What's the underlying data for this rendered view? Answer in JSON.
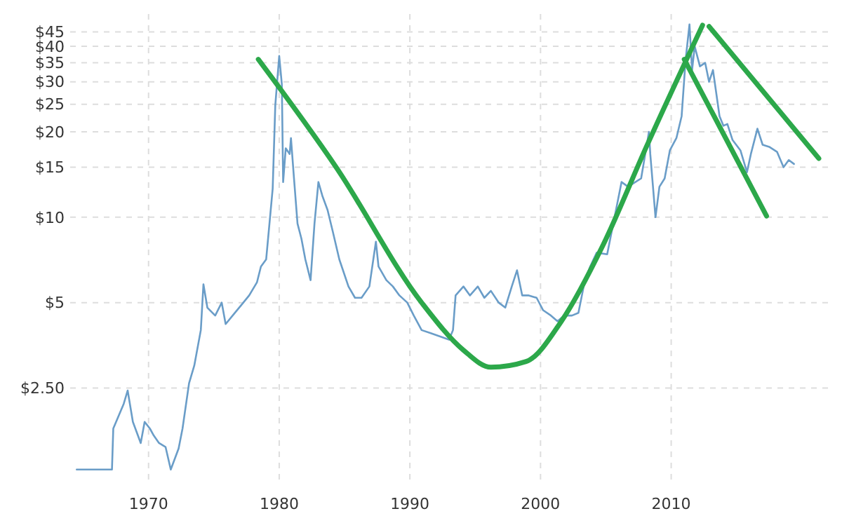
{
  "chart_data": {
    "type": "line",
    "log": "y",
    "grid": true,
    "line_style": "solid",
    "xlim": [
      1964,
      2022
    ],
    "ylim": [
      1.15,
      52
    ],
    "xticks": [
      1970,
      1980,
      1990,
      2000,
      2010
    ],
    "yticks": [
      {
        "value": 2.5,
        "label": "$2.50"
      },
      {
        "value": 5,
        "label": "$5"
      },
      {
        "value": 10,
        "label": "$10"
      },
      {
        "value": 15,
        "label": "$15"
      },
      {
        "value": 20,
        "label": "$20"
      },
      {
        "value": 25,
        "label": "$25"
      },
      {
        "value": 30,
        "label": "$30"
      },
      {
        "value": 35,
        "label": "$35"
      },
      {
        "value": 40,
        "label": "$40"
      },
      {
        "value": 45,
        "label": "$45"
      }
    ],
    "series": [
      {
        "color": "#6a9dc8",
        "x": [
          1964.5,
          1967.2,
          1967.3,
          1968.1,
          1968.4,
          1968.8,
          1969.4,
          1969.7,
          1970.1,
          1970.4,
          1970.8,
          1971.3,
          1971.7,
          1972.3,
          1972.6,
          1973.1,
          1973.5,
          1974.0,
          1974.2,
          1974.5,
          1975.1,
          1975.6,
          1975.9,
          1976.6,
          1977.1,
          1977.7,
          1978.3,
          1978.6,
          1979.0,
          1979.5,
          1979.7,
          1980.0,
          1980.2,
          1980.3,
          1980.5,
          1980.8,
          1980.9,
          1981.1,
          1981.4,
          1981.7,
          1982.0,
          1982.4,
          1982.7,
          1983.0,
          1983.3,
          1983.7,
          1984.1,
          1984.6,
          1985.3,
          1985.8,
          1986.3,
          1986.9,
          1987.4,
          1987.6,
          1988.2,
          1988.7,
          1989.2,
          1989.8,
          1990.3,
          1990.9,
          1991.6,
          1993.0,
          1993.3,
          1993.5,
          1994.1,
          1994.6,
          1995.2,
          1995.7,
          1996.2,
          1996.8,
          1997.3,
          1997.8,
          1998.2,
          1998.6,
          1999.1,
          1999.7,
          2000.2,
          2000.8,
          2001.3,
          2001.8,
          2002.4,
          2002.9,
          2003.4,
          2003.8,
          2004.3,
          2005.1,
          2006.2,
          2006.7,
          2007.7,
          2008.3,
          2008.4,
          2008.8,
          2009.1,
          2009.5,
          2009.9,
          2010.4,
          2010.8,
          2011.1,
          2011.4,
          2011.6,
          2011.8,
          2012.2,
          2012.6,
          2012.9,
          2013.2,
          2013.7,
          2014.0,
          2014.3,
          2014.7,
          2015.3,
          2015.8,
          2016.1,
          2016.6,
          2017.0,
          2017.5,
          2018.1,
          2018.6,
          2019.0,
          2019.4
        ],
        "values": [
          1.29,
          1.29,
          1.8,
          2.2,
          2.45,
          1.9,
          1.6,
          1.9,
          1.8,
          1.7,
          1.6,
          1.55,
          1.29,
          1.53,
          1.8,
          2.6,
          3.0,
          4.0,
          5.8,
          4.8,
          4.5,
          5.0,
          4.2,
          4.6,
          4.9,
          5.3,
          5.9,
          6.7,
          7.1,
          12.6,
          24.8,
          37,
          29.4,
          13.3,
          17.5,
          16.7,
          19,
          14.3,
          9.5,
          8.4,
          7.1,
          6,
          9.5,
          13.3,
          11.9,
          10.6,
          8.9,
          7.1,
          5.7,
          5.2,
          5.2,
          5.7,
          8.2,
          6.7,
          6,
          5.7,
          5.3,
          5.0,
          4.5,
          4.0,
          3.9,
          3.7,
          4.0,
          5.3,
          5.7,
          5.3,
          5.7,
          5.2,
          5.5,
          5.0,
          4.8,
          5.7,
          6.5,
          5.3,
          5.3,
          5.2,
          4.7,
          4.5,
          4.3,
          4.5,
          4.5,
          4.6,
          6,
          6.7,
          7.5,
          7.4,
          13.3,
          12.8,
          13.7,
          20,
          16.7,
          10,
          12.8,
          13.7,
          17.2,
          19,
          22.7,
          35.7,
          47.8,
          33,
          40,
          34,
          35,
          30,
          33,
          22.7,
          21,
          21.3,
          18.7,
          17.2,
          14.4,
          16.7,
          20.5,
          18,
          17.7,
          17,
          15,
          15.9,
          15.4
        ]
      },
      {
        "color": "#2ca84a",
        "x": [
          1978.4,
          1984.4,
          1990.9,
          1994.1,
          1996.2,
          1998.9,
          2001.6,
          2004.8,
          2008.1,
          2012.4
        ],
        "values": [
          36,
          14.9,
          5.0,
          3.4,
          2.96,
          3.1,
          4.3,
          8.0,
          17.7,
          47.5
        ]
      },
      {
        "color": "#2ca84a",
        "x": [
          2011.0,
          2017.3
        ],
        "values": [
          36,
          10.1
        ]
      },
      {
        "color": "#2ca84a",
        "x": [
          2012.9,
          2021.3
        ],
        "values": [
          47,
          16.1
        ]
      }
    ]
  }
}
